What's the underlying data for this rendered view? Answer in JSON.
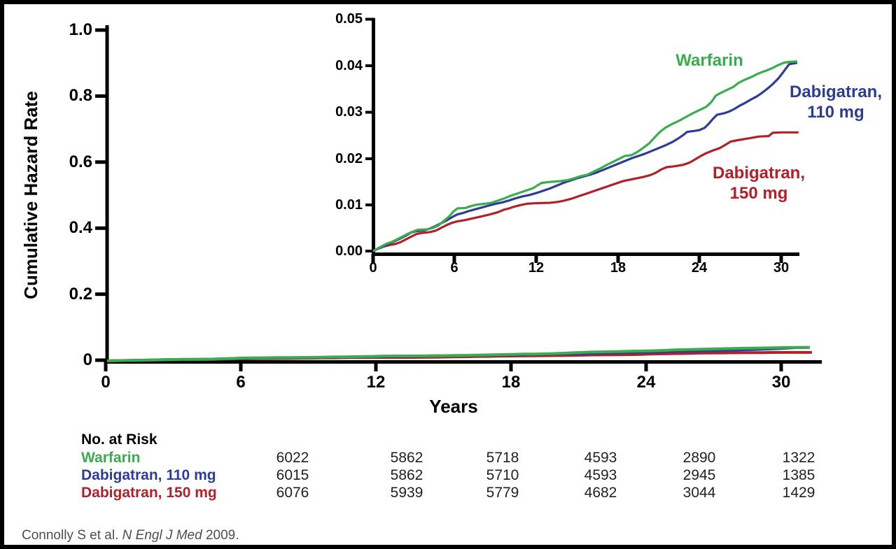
{
  "colors": {
    "warfarin": "#3aad4f",
    "dabigatran_110": "#2d3d96",
    "dabigatran_150": "#b2202a",
    "axis": "#000000",
    "citation": "#4d4e50"
  },
  "main_chart": {
    "ylabel": "Cumulative Hazard Rate",
    "xlabel": "Years",
    "yticks": [
      "1.0",
      "0.8",
      "0.6",
      "0.4",
      "0.2",
      "0"
    ],
    "xticks": [
      "0",
      "6",
      "12",
      "18",
      "24",
      "30"
    ]
  },
  "inset_chart": {
    "yticks": [
      "0.05",
      "0.04",
      "0.03",
      "0.02",
      "0.01",
      "0.00"
    ],
    "xticks": [
      "0",
      "6",
      "12",
      "18",
      "24",
      "30"
    ]
  },
  "legend": {
    "warfarin": "Warfarin",
    "dab110_line1": "Dabigatran,",
    "dab110_line2": "110 mg",
    "dab150_line1": "Dabigatran,",
    "dab150_line2": "150 mg"
  },
  "citation": {
    "authors": "Connolly S et al. ",
    "journal": "N Engl J Med",
    "year": " 2009."
  },
  "chart_data": {
    "type": "line",
    "title": "",
    "xlabel": "Years",
    "ylabel": "Cumulative Hazard Rate",
    "legend_position": "inline-labels",
    "grid": false,
    "main_axis": {
      "xlim": [
        0,
        31.8
      ],
      "ylim": [
        0,
        1.0
      ],
      "xticks": [
        0,
        6,
        12,
        18,
        24,
        30
      ],
      "yticks": [
        0,
        0.2,
        0.4,
        0.6,
        0.8,
        1.0
      ]
    },
    "inset_axis": {
      "xlim": [
        0,
        31.3
      ],
      "ylim": [
        0,
        0.05
      ],
      "xticks": [
        0,
        6,
        12,
        18,
        24,
        30
      ],
      "yticks": [
        0.0,
        0.01,
        0.02,
        0.03,
        0.04,
        0.05
      ]
    },
    "series": [
      {
        "name": "Dabigatran, 150 mg",
        "color": "#b2202a",
        "points": [
          [
            0,
            0
          ],
          [
            0.4,
            0.0006
          ],
          [
            0.8,
            0.001
          ],
          [
            1.2,
            0.0013
          ],
          [
            1.6,
            0.0015
          ],
          [
            2,
            0.0019
          ],
          [
            2.4,
            0.0025
          ],
          [
            2.8,
            0.0031
          ],
          [
            3.2,
            0.0037
          ],
          [
            3.6,
            0.0039
          ],
          [
            4.2,
            0.0041
          ],
          [
            4.6,
            0.0044
          ],
          [
            5,
            0.005
          ],
          [
            5.4,
            0.0056
          ],
          [
            5.8,
            0.0061
          ],
          [
            6.2,
            0.0064
          ],
          [
            6.8,
            0.0067
          ],
          [
            7.4,
            0.0071
          ],
          [
            8,
            0.0075
          ],
          [
            8.6,
            0.0079
          ],
          [
            9.2,
            0.0084
          ],
          [
            9.6,
            0.0089
          ],
          [
            10,
            0.0092
          ],
          [
            10.4,
            0.0096
          ],
          [
            10.8,
            0.0099
          ],
          [
            11.3,
            0.0102
          ],
          [
            11.8,
            0.0103
          ],
          [
            13,
            0.0104
          ],
          [
            13.6,
            0.0106
          ],
          [
            14.1,
            0.0109
          ],
          [
            14.6,
            0.0113
          ],
          [
            15,
            0.0117
          ],
          [
            15.4,
            0.0121
          ],
          [
            15.9,
            0.0126
          ],
          [
            16.4,
            0.0131
          ],
          [
            16.9,
            0.0136
          ],
          [
            17.4,
            0.0141
          ],
          [
            17.9,
            0.0146
          ],
          [
            18.4,
            0.0151
          ],
          [
            18.9,
            0.0154
          ],
          [
            19.4,
            0.0157
          ],
          [
            19.9,
            0.016
          ],
          [
            20.4,
            0.0164
          ],
          [
            20.8,
            0.0169
          ],
          [
            21.2,
            0.0176
          ],
          [
            21.6,
            0.0181
          ],
          [
            22.2,
            0.0183
          ],
          [
            22.8,
            0.0186
          ],
          [
            23.3,
            0.0191
          ],
          [
            23.7,
            0.0198
          ],
          [
            24.1,
            0.0205
          ],
          [
            24.5,
            0.0211
          ],
          [
            25,
            0.0217
          ],
          [
            25.5,
            0.0222
          ],
          [
            25.9,
            0.0229
          ],
          [
            26.3,
            0.0236
          ],
          [
            26.8,
            0.0239
          ],
          [
            27.4,
            0.0242
          ],
          [
            28,
            0.0245
          ],
          [
            28.4,
            0.0247
          ],
          [
            29.1,
            0.0248
          ],
          [
            29.4,
            0.0255
          ],
          [
            30,
            0.0256
          ],
          [
            31.3,
            0.0256
          ]
        ]
      },
      {
        "name": "Dabigatran, 110 mg",
        "color": "#2d3d96",
        "points": [
          [
            0,
            0
          ],
          [
            0.3,
            0.0004
          ],
          [
            0.7,
            0.0009
          ],
          [
            1.1,
            0.0015
          ],
          [
            1.5,
            0.002
          ],
          [
            2,
            0.0027
          ],
          [
            2.4,
            0.0033
          ],
          [
            2.8,
            0.004
          ],
          [
            3.2,
            0.0043
          ],
          [
            3.8,
            0.0045
          ],
          [
            4.2,
            0.0049
          ],
          [
            4.6,
            0.0054
          ],
          [
            5,
            0.006
          ],
          [
            5.4,
            0.0066
          ],
          [
            5.8,
            0.0073
          ],
          [
            6.2,
            0.0079
          ],
          [
            6.6,
            0.0082
          ],
          [
            7,
            0.0086
          ],
          [
            7.5,
            0.009
          ],
          [
            8,
            0.0094
          ],
          [
            8.5,
            0.0098
          ],
          [
            9,
            0.0102
          ],
          [
            9.5,
            0.0105
          ],
          [
            10,
            0.0109
          ],
          [
            10.5,
            0.0114
          ],
          [
            11,
            0.0118
          ],
          [
            11.5,
            0.0121
          ],
          [
            12,
            0.0125
          ],
          [
            12.5,
            0.013
          ],
          [
            13,
            0.0135
          ],
          [
            13.5,
            0.0141
          ],
          [
            14,
            0.0147
          ],
          [
            14.5,
            0.0152
          ],
          [
            15,
            0.0157
          ],
          [
            15.5,
            0.0161
          ],
          [
            16,
            0.0165
          ],
          [
            16.5,
            0.017
          ],
          [
            17,
            0.0176
          ],
          [
            17.5,
            0.0182
          ],
          [
            18,
            0.0188
          ],
          [
            18.5,
            0.0194
          ],
          [
            19,
            0.02
          ],
          [
            19.5,
            0.0205
          ],
          [
            20,
            0.021
          ],
          [
            20.5,
            0.0216
          ],
          [
            21,
            0.0222
          ],
          [
            21.5,
            0.0228
          ],
          [
            22,
            0.0235
          ],
          [
            22.4,
            0.0242
          ],
          [
            22.8,
            0.025
          ],
          [
            23.1,
            0.0257
          ],
          [
            23.6,
            0.0259
          ],
          [
            24,
            0.0261
          ],
          [
            24.4,
            0.0266
          ],
          [
            24.7,
            0.0275
          ],
          [
            25,
            0.0285
          ],
          [
            25.3,
            0.0294
          ],
          [
            25.8,
            0.0297
          ],
          [
            26.2,
            0.0301
          ],
          [
            26.6,
            0.0307
          ],
          [
            27,
            0.0314
          ],
          [
            27.4,
            0.032
          ],
          [
            27.8,
            0.0327
          ],
          [
            28.2,
            0.0333
          ],
          [
            28.6,
            0.0341
          ],
          [
            29,
            0.035
          ],
          [
            29.4,
            0.036
          ],
          [
            29.8,
            0.0372
          ],
          [
            30.1,
            0.0383
          ],
          [
            30.4,
            0.0395
          ],
          [
            30.6,
            0.0403
          ],
          [
            31.2,
            0.0406
          ]
        ]
      },
      {
        "name": "Warfarin",
        "color": "#3aad4f",
        "points": [
          [
            0,
            0
          ],
          [
            0.3,
            0.0005
          ],
          [
            0.6,
            0.001
          ],
          [
            1,
            0.0016
          ],
          [
            1.4,
            0.002
          ],
          [
            1.8,
            0.0026
          ],
          [
            2.2,
            0.0032
          ],
          [
            2.6,
            0.0038
          ],
          [
            3,
            0.0043
          ],
          [
            3.3,
            0.0046
          ],
          [
            4,
            0.0047
          ],
          [
            4.4,
            0.005
          ],
          [
            4.8,
            0.0055
          ],
          [
            5.2,
            0.0065
          ],
          [
            5.6,
            0.0075
          ],
          [
            5.9,
            0.0085
          ],
          [
            6.2,
            0.0092
          ],
          [
            6.8,
            0.0093
          ],
          [
            7.2,
            0.0097
          ],
          [
            7.6,
            0.01
          ],
          [
            8.2,
            0.0102
          ],
          [
            8.7,
            0.0104
          ],
          [
            9.2,
            0.0109
          ],
          [
            9.6,
            0.0113
          ],
          [
            10,
            0.0118
          ],
          [
            10.5,
            0.0123
          ],
          [
            11,
            0.0128
          ],
          [
            11.4,
            0.0132
          ],
          [
            11.8,
            0.0136
          ],
          [
            12.1,
            0.0142
          ],
          [
            12.4,
            0.0147
          ],
          [
            13,
            0.0149
          ],
          [
            13.8,
            0.0151
          ],
          [
            14.3,
            0.0153
          ],
          [
            14.8,
            0.0157
          ],
          [
            15.2,
            0.0161
          ],
          [
            15.8,
            0.0165
          ],
          [
            16.2,
            0.0171
          ],
          [
            16.7,
            0.0178
          ],
          [
            17.2,
            0.0186
          ],
          [
            17.7,
            0.0193
          ],
          [
            18.1,
            0.0199
          ],
          [
            18.5,
            0.0205
          ],
          [
            19,
            0.0207
          ],
          [
            19.4,
            0.0213
          ],
          [
            19.8,
            0.0221
          ],
          [
            20.3,
            0.0232
          ],
          [
            20.7,
            0.0245
          ],
          [
            21.1,
            0.0257
          ],
          [
            21.5,
            0.0266
          ],
          [
            22,
            0.0274
          ],
          [
            22.5,
            0.0281
          ],
          [
            23,
            0.0289
          ],
          [
            23.5,
            0.0297
          ],
          [
            24,
            0.0304
          ],
          [
            24.5,
            0.0311
          ],
          [
            24.9,
            0.0322
          ],
          [
            25.2,
            0.0335
          ],
          [
            25.5,
            0.034
          ],
          [
            26,
            0.0347
          ],
          [
            26.5,
            0.0354
          ],
          [
            26.9,
            0.0363
          ],
          [
            27.3,
            0.0369
          ],
          [
            27.8,
            0.0375
          ],
          [
            28.2,
            0.0381
          ],
          [
            28.6,
            0.0386
          ],
          [
            29,
            0.039
          ],
          [
            29.4,
            0.0395
          ],
          [
            29.8,
            0.0401
          ],
          [
            30.2,
            0.0406
          ],
          [
            30.6,
            0.0408
          ],
          [
            31.2,
            0.0409
          ]
        ]
      }
    ],
    "no_at_risk": {
      "title": "No. at Risk",
      "rows": [
        {
          "label": "Warfarin",
          "color": "#3aad4f",
          "values": [
            "6022",
            "5862",
            "5718",
            "4593",
            "2890",
            "1322"
          ]
        },
        {
          "label": "Dabigatran, 110 mg",
          "color": "#2d3d96",
          "values": [
            "6015",
            "5862",
            "5710",
            "4593",
            "2945",
            "1385"
          ]
        },
        {
          "label": "Dabigatran, 150 mg",
          "color": "#b2202a",
          "values": [
            "6076",
            "5939",
            "5779",
            "4682",
            "3044",
            "1429"
          ]
        }
      ]
    }
  }
}
